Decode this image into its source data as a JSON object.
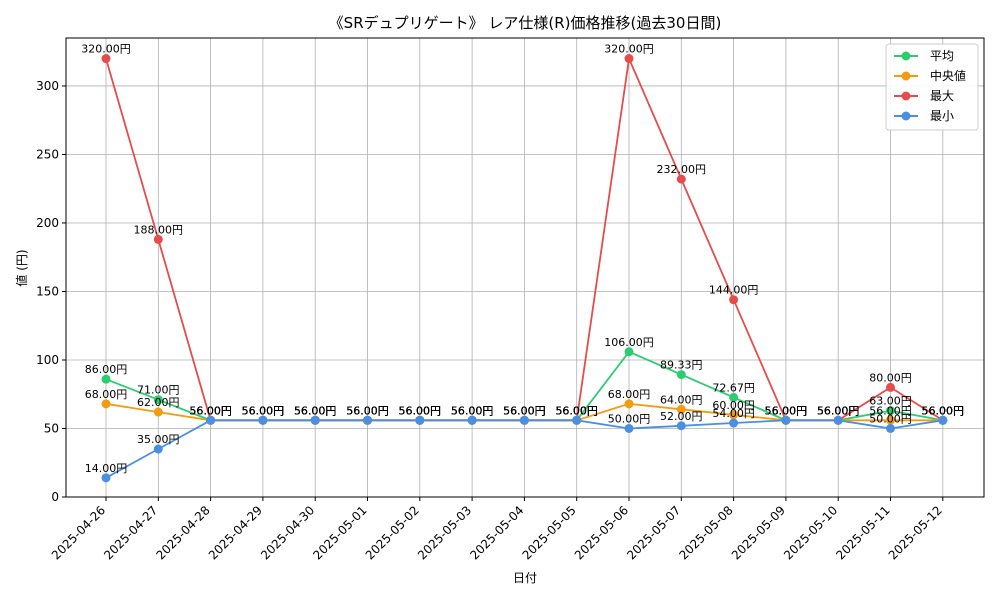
{
  "chart_data": {
    "type": "line",
    "title": "《SRデュプリゲート》 レア仕様(R)価格推移(過去30日間)",
    "xlabel": "日付",
    "ylabel": "値 (円)",
    "ylim": [
      0,
      335
    ],
    "yticks": [
      0,
      50,
      100,
      150,
      200,
      250,
      300
    ],
    "grid": true,
    "legend_position": "top-right",
    "categories": [
      "2025-04-26",
      "2025-04-27",
      "2025-04-28",
      "2025-04-29",
      "2025-04-30",
      "2025-05-01",
      "2025-05-02",
      "2025-05-03",
      "2025-05-04",
      "2025-05-05",
      "2025-05-06",
      "2025-05-07",
      "2025-05-08",
      "2025-05-09",
      "2025-05-10",
      "2025-05-11",
      "2025-05-12"
    ],
    "series": [
      {
        "name": "平均",
        "color": "#2ecc71",
        "values": [
          86.0,
          71.0,
          56.0,
          56.0,
          56.0,
          56.0,
          56.0,
          56.0,
          56.0,
          56.0,
          106.0,
          89.33,
          72.67,
          56.0,
          56.0,
          63.0,
          56.0
        ]
      },
      {
        "name": "中央値",
        "color": "#f39c12",
        "values": [
          68.0,
          62.0,
          56.0,
          56.0,
          56.0,
          56.0,
          56.0,
          56.0,
          56.0,
          56.0,
          68.0,
          64.0,
          60.0,
          56.0,
          56.0,
          56.0,
          56.0
        ]
      },
      {
        "name": "最大",
        "color": "#e74c4c",
        "values": [
          320.0,
          188.0,
          56.0,
          56.0,
          56.0,
          56.0,
          56.0,
          56.0,
          56.0,
          56.0,
          320.0,
          232.0,
          144.0,
          56.0,
          56.0,
          80.0,
          56.0
        ]
      },
      {
        "name": "最小",
        "color": "#4a90e2",
        "values": [
          14.0,
          35.0,
          56.0,
          56.0,
          56.0,
          56.0,
          56.0,
          56.0,
          56.0,
          56.0,
          50.0,
          52.0,
          54.0,
          56.0,
          56.0,
          50.0,
          56.0
        ]
      }
    ],
    "value_suffix": "円"
  }
}
